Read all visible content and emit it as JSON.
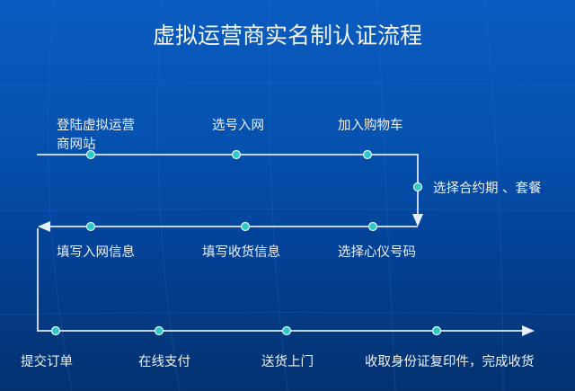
{
  "title": "虚拟运营商实名制认证流程",
  "colors": {
    "node": "#2ec9c9",
    "line": "#c8d4e6"
  },
  "steps": [
    {
      "label_line1": "登陆虚拟运营",
      "label_line2": "商网站"
    },
    {
      "label": "选号入网"
    },
    {
      "label": "加入购物车"
    },
    {
      "label": "选择合约期 、套餐"
    },
    {
      "label": "选择心仪号码"
    },
    {
      "label": "填写收货信息"
    },
    {
      "label": "填写入网信息"
    },
    {
      "label": "提交订单"
    },
    {
      "label": "在线支付"
    },
    {
      "label": "送货上门"
    },
    {
      "label": "收取身份证复印件，完成收货"
    }
  ]
}
